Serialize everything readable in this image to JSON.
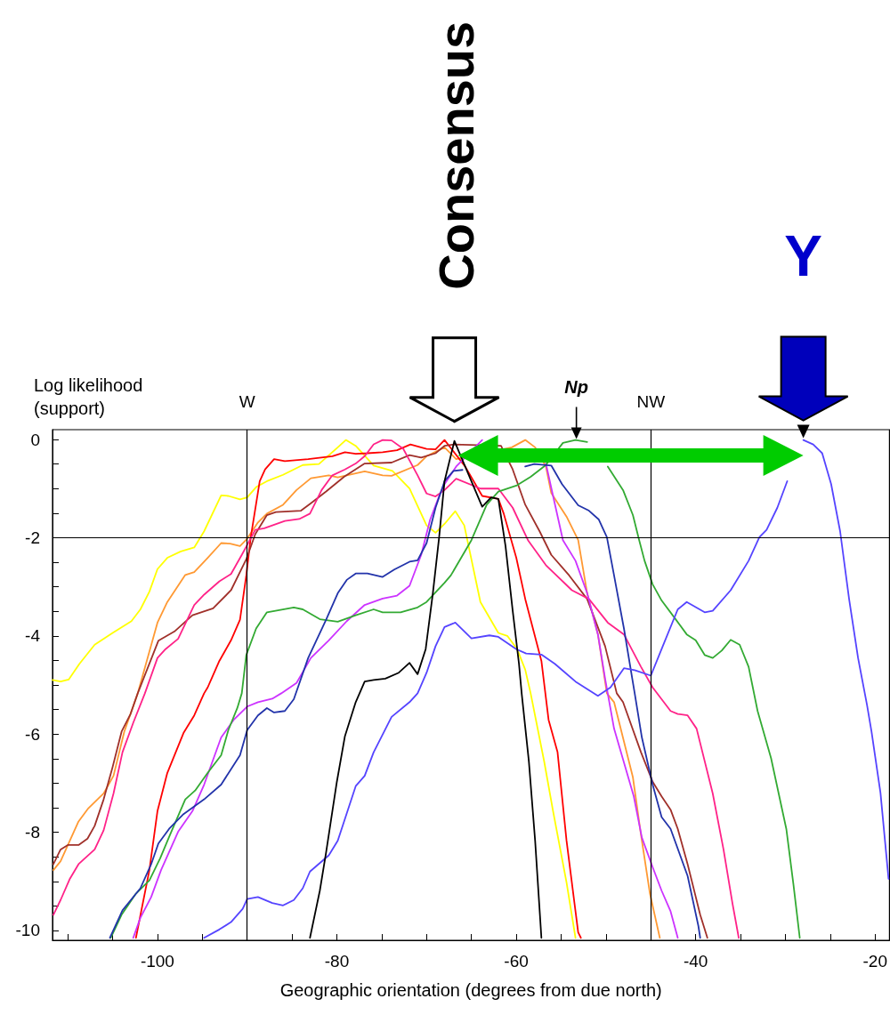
{
  "chart_data": {
    "type": "line",
    "xlabel": "Geographic orientation (degrees from due north)",
    "ylabel": "Log likelihood (support)",
    "xlim": [
      -111.7,
      -18.4
    ],
    "ylim": [
      -10.2,
      0.2
    ],
    "xticks": [
      {
        "value": -110,
        "label": null
      },
      {
        "value": -105,
        "label": null
      },
      -100,
      {
        "value": -95,
        "label": null
      },
      {
        "value": -90,
        "label": null
      },
      {
        "value": -85,
        "label": null
      },
      -80,
      {
        "value": -75,
        "label": null
      },
      {
        "value": -70,
        "label": null
      },
      {
        "value": -65,
        "label": null
      },
      -60,
      {
        "value": -55,
        "label": null
      },
      {
        "value": -50,
        "label": null
      },
      {
        "value": -45,
        "label": null
      },
      -40,
      {
        "value": -35,
        "label": null
      },
      {
        "value": -30,
        "label": null
      },
      {
        "value": -25,
        "label": null
      },
      -20
    ],
    "yticks": [
      -10,
      {
        "value": -9.5,
        "label": null
      },
      {
        "value": -9,
        "label": null
      },
      -8,
      {
        "value": -7.5,
        "label": null
      },
      {
        "value": -7,
        "label": null
      },
      {
        "value": -6.5,
        "label": null
      },
      -6,
      {
        "value": -5.5,
        "label": null
      },
      {
        "value": -5,
        "label": null
      },
      {
        "value": -4.5,
        "label": null
      },
      -4,
      {
        "value": -3.5,
        "label": null
      },
      {
        "value": -3,
        "label": null
      },
      {
        "value": -2.5,
        "label": null
      },
      -2,
      {
        "value": -1.5,
        "label": null
      },
      {
        "value": -1,
        "label": null
      },
      {
        "value": -0.5,
        "label": null
      },
      0,
      {
        "value": -8.5,
        "label": null
      }
    ],
    "grid": false,
    "marker": "none",
    "line_style": "solid",
    "ref_lines": [
      {
        "axis": "x",
        "value": -90,
        "label": "W",
        "color": "#000000"
      },
      {
        "axis": "x",
        "value": -45,
        "label": "NW",
        "color": "#000000"
      },
      {
        "axis": "y",
        "value": -2,
        "label": null,
        "color": "#000000"
      }
    ],
    "annotations": [
      "Consensus",
      {
        "text": "Y",
        "x": -28,
        "y": -0.01
      },
      {
        "text": "Np",
        "x": -53.3,
        "y": -0.01
      }
    ],
    "series": [
      {
        "color": "#ffff00",
        "x": [
          -111.7,
          -110.8,
          -109.9,
          -108.7,
          -107.0,
          -105.0,
          -102.9,
          -101.9,
          -100.9,
          -100.0,
          -98.9,
          -97.4,
          -95.9,
          -94.8,
          -92.9,
          -92.1,
          -90.8,
          -90.0,
          -89.0,
          -87.8,
          -86.0,
          -83.8,
          -82.0,
          -79.9,
          -79.0,
          -77.9,
          -75.9,
          -73.8,
          -71.9,
          -70.0,
          -69.0,
          -68.0,
          -66.8,
          -65.8,
          -64.0,
          -62.0,
          -61.0,
          -59.9,
          -59.0,
          -58.4,
          -56.9,
          -55.9,
          -54.4,
          -53.4
        ],
        "values": [
          -4.9,
          -4.93,
          -4.89,
          -4.57,
          -4.18,
          -3.94,
          -3.7,
          -3.46,
          -3.1,
          -2.64,
          -2.41,
          -2.28,
          -2.2,
          -1.87,
          -1.14,
          -1.15,
          -1.22,
          -1.18,
          -0.97,
          -0.85,
          -0.72,
          -0.52,
          -0.5,
          -0.16,
          -0.01,
          -0.13,
          -0.53,
          -0.64,
          -1.0,
          -1.75,
          -1.9,
          -1.72,
          -1.46,
          -1.75,
          -3.31,
          -3.94,
          -4.0,
          -4.27,
          -4.69,
          -5.17,
          -6.55,
          -7.57,
          -9.02,
          -10.15
        ]
      },
      {
        "color": "#ff9933",
        "x": [
          -111.6,
          -110.8,
          -108.8,
          -107.7,
          -106.0,
          -104.9,
          -103.7,
          -102.2,
          -100.0,
          -98.9,
          -96.9,
          -95.9,
          -94.4,
          -92.9,
          -91.9,
          -90.8,
          -90.0,
          -88.8,
          -87.8,
          -86.0,
          -84.5,
          -82.9,
          -80.9,
          -79.9,
          -76.9,
          -74.9,
          -73.9,
          -71.0,
          -70.0,
          -68.0,
          -66.7,
          -60.5,
          -59.0,
          -57.9,
          -56.7,
          -56.1,
          -54.4,
          -53.1,
          -52.1,
          -50.9,
          -49.9,
          -49.1,
          -47.0,
          -46.1,
          -45.1,
          -44.0
        ],
        "values": [
          -8.77,
          -8.59,
          -7.78,
          -7.51,
          -7.21,
          -6.85,
          -5.95,
          -5.17,
          -3.73,
          -3.31,
          -2.76,
          -2.7,
          -2.41,
          -2.11,
          -2.12,
          -2.17,
          -2.02,
          -1.69,
          -1.51,
          -1.33,
          -1.03,
          -0.79,
          -0.73,
          -0.77,
          -0.65,
          -0.73,
          -0.74,
          -0.52,
          -0.34,
          -0.16,
          -0.4,
          -0.16,
          -0.01,
          -0.16,
          -0.55,
          -1.09,
          -1.57,
          -2.05,
          -3.13,
          -3.97,
          -5.17,
          -5.35,
          -6.88,
          -8.05,
          -9.25,
          -10.15
        ]
      },
      {
        "color": "#ff0000",
        "x": [
          -102.4,
          -100.9,
          -100.0,
          -98.9,
          -97.1,
          -95.9,
          -94.8,
          -94.4,
          -93.1,
          -91.8,
          -90.8,
          -90.1,
          -89.6,
          -88.6,
          -88.0,
          -87.0,
          -85.8,
          -83.2,
          -80.5,
          -79.1,
          -77.9,
          -76.6,
          -74.9,
          -73.3,
          -71.8,
          -70.0,
          -69.0,
          -68.0,
          -65.7,
          -63.8,
          -62.0,
          -61.4,
          -60.0,
          -59.0,
          -57.2,
          -56.4,
          -55.4,
          -54.4,
          -53.1,
          -52.8
        ],
        "values": [
          -10.15,
          -8.77,
          -7.57,
          -6.79,
          -5.98,
          -5.62,
          -5.17,
          -5.05,
          -4.51,
          -4.09,
          -3.67,
          -2.77,
          -1.99,
          -0.85,
          -0.61,
          -0.4,
          -0.44,
          -0.4,
          -0.34,
          -0.26,
          -0.29,
          -0.28,
          -0.26,
          -0.22,
          -0.1,
          -0.19,
          -0.2,
          -0.01,
          -0.55,
          -1.15,
          -1.21,
          -1.51,
          -2.41,
          -3.25,
          -4.51,
          -5.71,
          -6.37,
          -8.17,
          -10.04,
          -10.15
        ]
      },
      {
        "color": "#a0302a",
        "x": [
          -111.6,
          -110.8,
          -110.0,
          -108.8,
          -107.8,
          -107.0,
          -106.0,
          -105.0,
          -104.0,
          -103.0,
          -102.2,
          -99.9,
          -98.1,
          -96.1,
          -93.8,
          -91.8,
          -90.1,
          -89.1,
          -87.8,
          -86.8,
          -84.0,
          -82.9,
          -81.2,
          -79.2,
          -76.9,
          -73.9,
          -71.9,
          -70.6,
          -69.0,
          -68.0,
          -66.9,
          -61.7,
          -60.4,
          -59.0,
          -57.4,
          -56.1,
          -54.1,
          -52.1,
          -50.1,
          -48.8,
          -48.1,
          -46.1,
          -44.8,
          -43.8,
          -42.8,
          -42.0,
          -40.9,
          -39.5,
          -38.7
        ],
        "values": [
          -8.65,
          -8.35,
          -8.26,
          -8.26,
          -8.13,
          -7.87,
          -7.33,
          -6.67,
          -5.95,
          -5.59,
          -5.17,
          -4.1,
          -3.91,
          -3.58,
          -3.44,
          -3.07,
          -2.44,
          -1.93,
          -1.54,
          -1.48,
          -1.45,
          -1.3,
          -1.06,
          -0.76,
          -0.49,
          -0.47,
          -0.32,
          -0.37,
          -0.28,
          -0.13,
          -0.1,
          -0.13,
          -0.61,
          -1.33,
          -1.87,
          -2.35,
          -2.77,
          -3.25,
          -4.21,
          -5.17,
          -5.35,
          -6.37,
          -6.97,
          -7.27,
          -7.54,
          -7.93,
          -8.65,
          -9.68,
          -10.15
        ]
      },
      {
        "color": "#ff2288",
        "x": [
          -111.6,
          -110.8,
          -109.8,
          -108.8,
          -107.0,
          -106.0,
          -104.9,
          -103.9,
          -102.7,
          -101.4,
          -100.0,
          -99.1,
          -97.7,
          -95.9,
          -94.8,
          -93.1,
          -91.8,
          -90.6,
          -89.8,
          -89.1,
          -88.1,
          -85.8,
          -84.2,
          -83.0,
          -81.7,
          -80.5,
          -79.1,
          -77.9,
          -76.9,
          -75.9,
          -74.9,
          -73.9,
          -72.6,
          -71.0,
          -70.0,
          -69.0,
          -68.0,
          -66.7,
          -64.0,
          -62.0,
          -60.4,
          -58.7,
          -56.7,
          -53.8,
          -51.9,
          -49.8,
          -48.0,
          -46.1,
          -44.8,
          -42.8,
          -42.0,
          -40.9,
          -39.9,
          -38.1,
          -36.9,
          -35.9,
          -35.2
        ],
        "values": [
          -9.68,
          -9.38,
          -8.96,
          -8.65,
          -8.35,
          -7.96,
          -7.21,
          -6.37,
          -5.77,
          -5.17,
          -4.45,
          -4.27,
          -4.06,
          -3.37,
          -3.16,
          -2.89,
          -2.74,
          -2.35,
          -2.08,
          -1.84,
          -1.81,
          -1.66,
          -1.62,
          -1.51,
          -1.03,
          -0.73,
          -0.61,
          -0.49,
          -0.34,
          -0.1,
          -0.01,
          -0.02,
          -0.19,
          -0.73,
          -1.1,
          -1.16,
          -1.03,
          -0.8,
          -1.0,
          -1.0,
          -1.39,
          -2.05,
          -2.56,
          -3.07,
          -3.25,
          -3.73,
          -3.97,
          -4.63,
          -5.05,
          -5.53,
          -5.59,
          -5.62,
          -5.89,
          -7.21,
          -8.35,
          -9.45,
          -10.15
        ]
      },
      {
        "color": "#cc33ff",
        "x": [
          -102.7,
          -101.9,
          -100.7,
          -99.6,
          -97.7,
          -96.1,
          -94.8,
          -92.9,
          -91.5,
          -90.0,
          -88.8,
          -87.2,
          -86.2,
          -84.5,
          -82.9,
          -80.9,
          -78.9,
          -76.9,
          -74.9,
          -73.3,
          -71.9,
          -70.6,
          -69.6,
          -68.6,
          -68.0,
          -66.7,
          -63.8,
          -62.4,
          -60.0,
          -56.7,
          -55.9,
          -54.8,
          -53.4,
          -52.1,
          -50.9,
          -50.1,
          -49.1,
          -46.9,
          -46.0,
          -44.8,
          -43.8,
          -42.8,
          -42.0
        ],
        "values": [
          -10.15,
          -9.74,
          -9.32,
          -8.77,
          -7.99,
          -7.57,
          -7.03,
          -6.07,
          -5.71,
          -5.44,
          -5.35,
          -5.28,
          -5.17,
          -4.96,
          -4.45,
          -4.09,
          -3.7,
          -3.37,
          -3.24,
          -3.18,
          -2.98,
          -2.35,
          -1.63,
          -1.15,
          -0.91,
          -0.55,
          -0.01,
          null,
          null,
          -0.49,
          -1.15,
          -2.05,
          -2.47,
          -3.13,
          -3.97,
          -4.87,
          -5.89,
          -7.27,
          -8.11,
          -8.71,
          -9.19,
          -9.61,
          -10.15
        ]
      },
      {
        "color": "#33aa33",
        "x": [
          -105.2,
          -104.0,
          -102.4,
          -100.9,
          -99.7,
          -98.6,
          -96.9,
          -95.8,
          -94.4,
          -92.9,
          -92.1,
          -91.1,
          -90.6,
          -90.1,
          -89.0,
          -87.8,
          -84.8,
          -83.8,
          -81.9,
          -79.9,
          -77.9,
          -75.9,
          -74.9,
          -72.9,
          -71.0,
          -70.0,
          -68.0,
          -67.3,
          -65.0,
          -63.3,
          -62.0,
          -60.0,
          -58.4,
          -56.7,
          -54.8,
          -53.4,
          -52.1,
          -51.1,
          -49.8,
          -48.1,
          -47.0,
          -46.3,
          -45.7,
          -44.8,
          -43.8,
          -42.2,
          -41.0,
          -40.0,
          -39.0,
          -38.1,
          -37.1,
          -36.1,
          -35.1,
          -34.1,
          -33.1,
          -31.6,
          -29.9,
          -29.1,
          -28.4
        ],
        "values": [
          -10.15,
          -9.68,
          -9.25,
          -8.98,
          -8.53,
          -8.05,
          -7.33,
          -7.15,
          -6.79,
          -6.43,
          -5.92,
          -5.47,
          -5.17,
          -4.39,
          -3.85,
          -3.52,
          -3.42,
          -3.46,
          -3.66,
          -3.71,
          -3.58,
          -3.46,
          -3.52,
          -3.52,
          -3.42,
          -3.31,
          -2.92,
          -2.77,
          -2.05,
          -1.33,
          -1.06,
          -0.94,
          -0.76,
          -0.52,
          -0.07,
          -0.01,
          -0.05,
          null,
          -0.55,
          -1.03,
          -1.54,
          -2.05,
          -2.47,
          -2.95,
          -3.28,
          -3.67,
          -3.97,
          -4.09,
          -4.39,
          -4.45,
          -4.3,
          -4.08,
          -4.18,
          -4.63,
          -5.53,
          -6.49,
          -7.93,
          -9.07,
          -10.15
        ]
      },
      {
        "color": "#2233aa",
        "x": [
          -105.3,
          -103.9,
          -101.9,
          -100.7,
          -99.9,
          -98.7,
          -97.1,
          -94.8,
          -92.9,
          -90.8,
          -90.0,
          -88.8,
          -87.8,
          -87.0,
          -85.8,
          -84.8,
          -83.2,
          -81.2,
          -79.9,
          -78.9,
          -77.9,
          -76.6,
          -74.9,
          -73.6,
          -71.9,
          -71.0,
          -70.0,
          -69.0,
          -68.0,
          -67.0,
          -66.0,
          -64.7,
          -62.0,
          -60.4,
          -59.0,
          -58.0,
          -56.1,
          -54.9,
          -53.1,
          -51.9,
          -50.8,
          -49.9,
          -49.1,
          -48.0,
          -46.8,
          -46.0,
          -44.8,
          -43.8,
          -42.8,
          -40.9,
          -39.7,
          -39.5
        ],
        "values": [
          -10.15,
          -9.59,
          -9.14,
          -8.65,
          -8.23,
          -7.93,
          -7.63,
          -7.33,
          -7.03,
          -6.43,
          -5.92,
          -5.62,
          -5.47,
          -5.56,
          -5.53,
          -5.29,
          -4.45,
          -3.67,
          -3.13,
          -2.86,
          -2.73,
          -2.73,
          -2.8,
          -2.65,
          -2.49,
          -2.46,
          -2.11,
          -1.39,
          -0.85,
          -0.64,
          -0.62,
          null,
          null,
          null,
          -0.55,
          -0.5,
          -0.53,
          -0.91,
          -1.34,
          -1.45,
          -1.63,
          -1.99,
          -2.77,
          -3.85,
          -5.17,
          -6.07,
          -7.03,
          -7.69,
          -7.93,
          -8.89,
          -9.91,
          -10.15
        ]
      },
      {
        "color": "#5544ff",
        "x": [
          -94.8,
          -93.1,
          -91.8,
          -90.5,
          -90.0,
          -88.8,
          -87.2,
          -86.0,
          -84.8,
          -83.8,
          -83.0,
          -80.9,
          -79.9,
          -77.9,
          -76.9,
          -75.9,
          -73.9,
          -71.9,
          -71.0,
          -70.0,
          -69.0,
          -68.0,
          -66.8,
          -65.0,
          -63.0,
          -62.0,
          -60.0,
          -58.9,
          -57.2,
          -55.7,
          -53.4,
          -50.9,
          -49.5,
          -48.0,
          -46.8,
          -45.0,
          -43.8,
          -42.0,
          -41.0,
          -39.0,
          -38.1,
          -36.1,
          -34.1,
          -32.9,
          -32.1,
          -30.9,
          -29.8,
          -28.8,
          -28.0,
          -26.9,
          -25.9,
          -24.9,
          -23.9,
          -22.9,
          -21.9,
          -20.9,
          -20.4,
          -19.4,
          -18.5
        ],
        "values": [
          -10.15,
          -9.98,
          -9.83,
          -9.56,
          -9.36,
          -9.32,
          -9.44,
          -9.49,
          -9.38,
          -9.14,
          -8.8,
          -8.47,
          -8.17,
          -7.06,
          -6.85,
          -6.37,
          -5.65,
          -5.35,
          -5.17,
          -4.75,
          -4.21,
          -3.82,
          -3.73,
          -4.05,
          -3.99,
          -4.02,
          -4.27,
          -4.36,
          -4.38,
          -4.57,
          -4.93,
          -5.22,
          -5.05,
          -4.66,
          -4.7,
          -4.81,
          -4.27,
          -3.46,
          -3.31,
          -3.52,
          -3.49,
          -3.07,
          -2.47,
          -1.99,
          -1.84,
          -1.39,
          -0.85,
          null,
          -0.01,
          -0.1,
          -0.28,
          -0.91,
          -1.87,
          -3.25,
          -4.45,
          -5.41,
          -5.95,
          -7.2,
          -8.95
        ]
      },
      {
        "color": "#000000",
        "x": [
          -83.0,
          -81.9,
          -81.2,
          -80.0,
          -79.1,
          -77.9,
          -76.9,
          -75.9,
          -74.6,
          -73.1,
          -71.9,
          -71.0,
          -70.1,
          -69.3,
          -68.6,
          -68.0,
          -66.9,
          -65.7,
          -63.8,
          -62.8,
          -62.0,
          -61.2,
          -60.4,
          -59.7,
          -59.4,
          -58.6,
          -57.9,
          -57.2
        ],
        "values": [
          -10.15,
          -9.19,
          -8.41,
          -6.97,
          -6.04,
          -5.35,
          -4.93,
          -4.9,
          -4.87,
          -4.75,
          -4.55,
          -4.78,
          -4.27,
          -3.13,
          -1.99,
          -0.85,
          -0.03,
          -0.55,
          -1.37,
          -1.18,
          -1.21,
          -2.17,
          -3.49,
          -4.57,
          -5.17,
          -6.55,
          -8.17,
          -10.15
        ]
      }
    ]
  }
}
